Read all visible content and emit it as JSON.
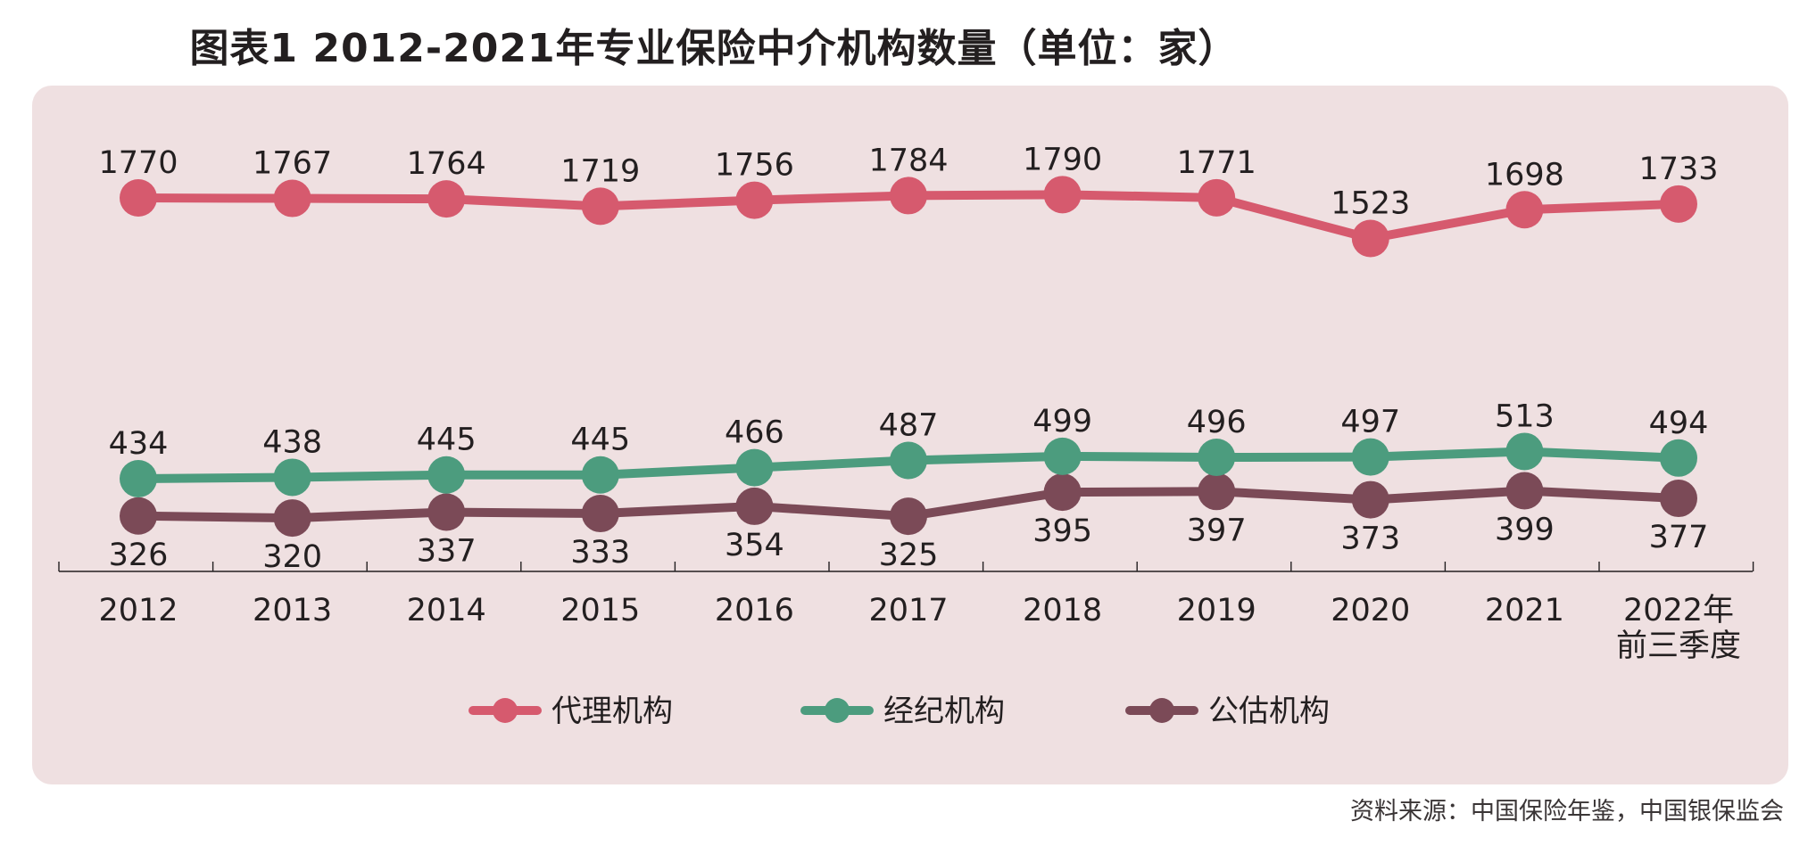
{
  "title": "图表1  2012-2021年专业保险中介机构数量（单位：家）",
  "source": "资料来源：中国保险年鉴，中国银保监会",
  "chart_data": {
    "type": "line",
    "categories": [
      "2012",
      "2013",
      "2014",
      "2015",
      "2016",
      "2017",
      "2018",
      "2019",
      "2020",
      "2021",
      "2022年\n前三季度"
    ],
    "series": [
      {
        "name": "代理机构",
        "color": "#d65a6e",
        "values": [
          1770,
          1767,
          1764,
          1719,
          1756,
          1784,
          1790,
          1771,
          1523,
          1698,
          1733
        ]
      },
      {
        "name": "经纪机构",
        "color": "#4c9c7e",
        "values": [
          434,
          438,
          445,
          445,
          466,
          487,
          499,
          496,
          497,
          513,
          494
        ]
      },
      {
        "name": "公估机构",
        "color": "#7b4a57",
        "values": [
          326,
          320,
          337,
          333,
          354,
          325,
          395,
          397,
          373,
          399,
          377
        ]
      }
    ],
    "legend_position": "bottom",
    "grid": false
  }
}
